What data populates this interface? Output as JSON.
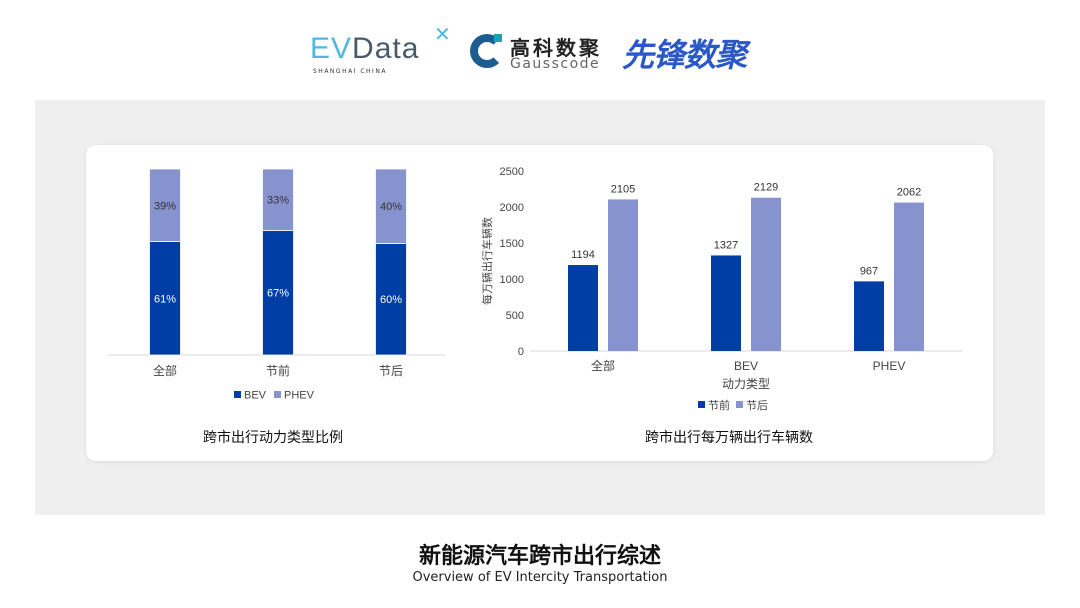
{
  "logos": {
    "evdata": {
      "ev": "EV",
      "data": "Data",
      "sub": "SHANGHAI CHINA"
    },
    "gausscode": {
      "cn": "高科数聚",
      "en": "Gausscode"
    },
    "xianfeng": "先锋数聚"
  },
  "colors": {
    "bev": "#003da5",
    "phev": "#8793cf",
    "before": "#003da5",
    "after": "#8793cf",
    "panel": "#efefef"
  },
  "chart_data": [
    {
      "type": "bar",
      "stacked": true,
      "percent": true,
      "title": "跨市出行动力类型比例",
      "categories": [
        "全部",
        "节前",
        "节后"
      ],
      "series": [
        {
          "name": "BEV",
          "values": [
            61,
            67,
            60
          ],
          "labels": [
            "61%",
            "67%",
            "60%"
          ]
        },
        {
          "name": "PHEV",
          "values": [
            39,
            33,
            40
          ],
          "labels": [
            "39%",
            "33%",
            "40%"
          ]
        }
      ],
      "ylim": [
        0,
        100
      ],
      "legend": "bottom",
      "grid": false
    },
    {
      "type": "bar",
      "title": "跨市出行每万辆出行车辆数",
      "xlabel": "动力类型",
      "ylabel": "每万辆出行车辆数",
      "categories": [
        "全部",
        "BEV",
        "PHEV"
      ],
      "series": [
        {
          "name": "节前",
          "values": [
            1194,
            1327,
            967
          ]
        },
        {
          "name": "节后",
          "values": [
            2105,
            2129,
            2062
          ]
        }
      ],
      "yticks": [
        0,
        500,
        1000,
        1500,
        2000,
        2500
      ],
      "ylim": [
        0,
        2500
      ],
      "legend": "bottom",
      "grid": false
    }
  ],
  "footer": {
    "title": "新能源汽车跨市出行综述",
    "subtitle": "Overview of EV Intercity Transportation"
  }
}
